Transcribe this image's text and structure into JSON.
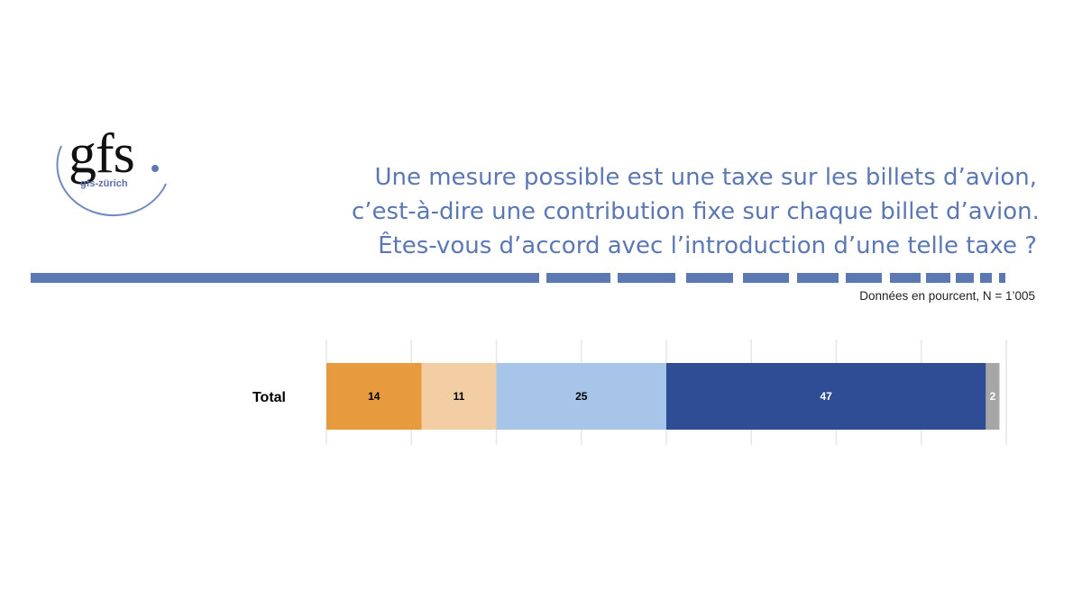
{
  "logo": {
    "mark": "gfs",
    "subtitle": "gfs-zürich"
  },
  "title_lines": [
    "Une mesure possible est une taxe sur les billets d’avion,",
    "c’est-à-dire une contribution fixe sur chaque billet d’avion.",
    "Êtes-vous d’accord avec l’introduction d’une telle taxe ?"
  ],
  "note": "Données en pourcent, N = 1’005",
  "colors": {
    "accent": "#5b78b3",
    "series": [
      "#e89b3e",
      "#f3cda4",
      "#a6c5e8",
      "#2e4d94",
      "#a6a6a6"
    ],
    "label_light": "#000000",
    "label_dark": "#ffffff",
    "grid": "#e6e6e6"
  },
  "chart_data": {
    "type": "bar",
    "orientation": "horizontal",
    "stacked": true,
    "categories": [
      "Total"
    ],
    "series": [
      {
        "values": [
          14
        ]
      },
      {
        "values": [
          11
        ]
      },
      {
        "values": [
          25
        ]
      },
      {
        "values": [
          47
        ]
      },
      {
        "values": [
          2
        ]
      }
    ],
    "xlim": [
      0,
      100
    ],
    "grid": true,
    "legend": "none"
  }
}
